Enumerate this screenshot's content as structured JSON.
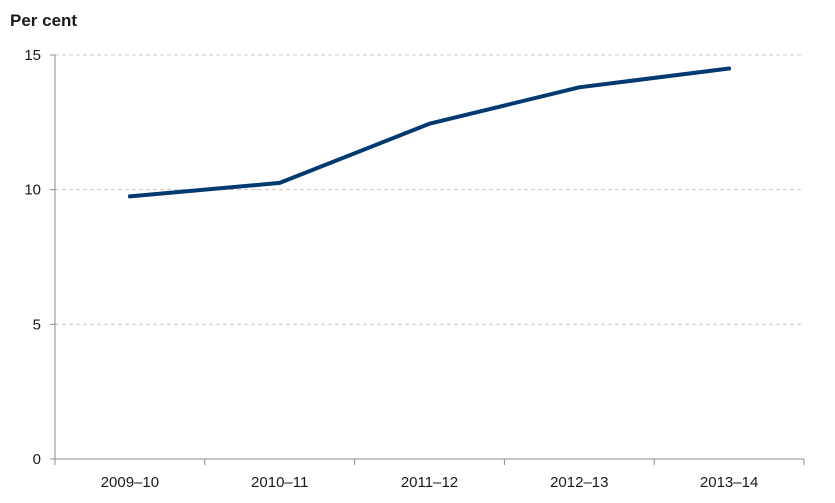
{
  "chart_data": {
    "type": "line",
    "title": "",
    "xlabel": "",
    "ylabel": "Per cent",
    "categories": [
      "2009–10",
      "2010–11",
      "2011–12",
      "2012–13",
      "2013–14"
    ],
    "series": [
      {
        "values": [
          9.75,
          10.25,
          12.45,
          13.8,
          14.5
        ],
        "color": "#003A70"
      }
    ],
    "ylim": [
      0,
      15
    ],
    "yticks": [
      "0",
      "5",
      "10",
      "15"
    ],
    "grid": true,
    "legend": "none"
  }
}
